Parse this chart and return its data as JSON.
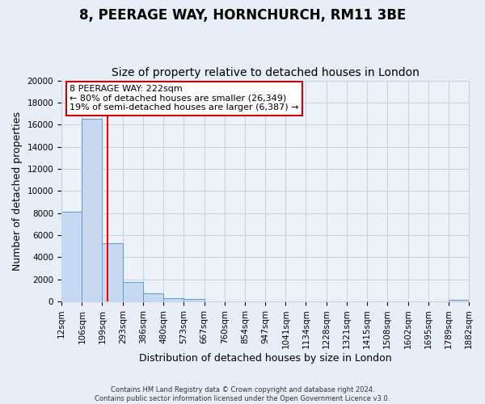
{
  "title": "8, PEERAGE WAY, HORNCHURCH, RM11 3BE",
  "subtitle": "Size of property relative to detached houses in London",
  "xlabel": "Distribution of detached houses by size in London",
  "ylabel": "Number of detached properties",
  "bin_labels": [
    "12sqm",
    "106sqm",
    "199sqm",
    "293sqm",
    "386sqm",
    "480sqm",
    "573sqm",
    "667sqm",
    "760sqm",
    "854sqm",
    "947sqm",
    "1041sqm",
    "1134sqm",
    "1228sqm",
    "1321sqm",
    "1415sqm",
    "1508sqm",
    "1602sqm",
    "1695sqm",
    "1789sqm",
    "1882sqm"
  ],
  "bin_edges": [
    12,
    106,
    199,
    293,
    386,
    480,
    573,
    667,
    760,
    854,
    947,
    1041,
    1134,
    1228,
    1321,
    1415,
    1508,
    1602,
    1695,
    1789,
    1882
  ],
  "bar_heights": [
    8100,
    16500,
    5300,
    1750,
    750,
    300,
    200,
    0,
    0,
    0,
    0,
    0,
    0,
    0,
    0,
    0,
    0,
    0,
    0,
    150
  ],
  "bar_color": "#c6d9f0",
  "bar_edge_color": "#5b9bd5",
  "red_line_x": 222,
  "ylim": [
    0,
    20000
  ],
  "yticks": [
    0,
    2000,
    4000,
    6000,
    8000,
    10000,
    12000,
    14000,
    16000,
    18000,
    20000
  ],
  "annotation_title": "8 PEERAGE WAY: 222sqm",
  "annotation_line1": "← 80% of detached houses are smaller (26,349)",
  "annotation_line2": "19% of semi-detached houses are larger (6,387) →",
  "annotation_box_color": "#ffffff",
  "annotation_box_edge": "#cc0000",
  "footer_line1": "Contains HM Land Registry data © Crown copyright and database right 2024.",
  "footer_line2": "Contains public sector information licensed under the Open Government Licence v3.0.",
  "background_color": "#e8eef7",
  "plot_background": "#edf2f9",
  "grid_color": "#c8d4e4",
  "title_fontsize": 12,
  "subtitle_fontsize": 10,
  "axis_label_fontsize": 9,
  "tick_fontsize": 7.5
}
